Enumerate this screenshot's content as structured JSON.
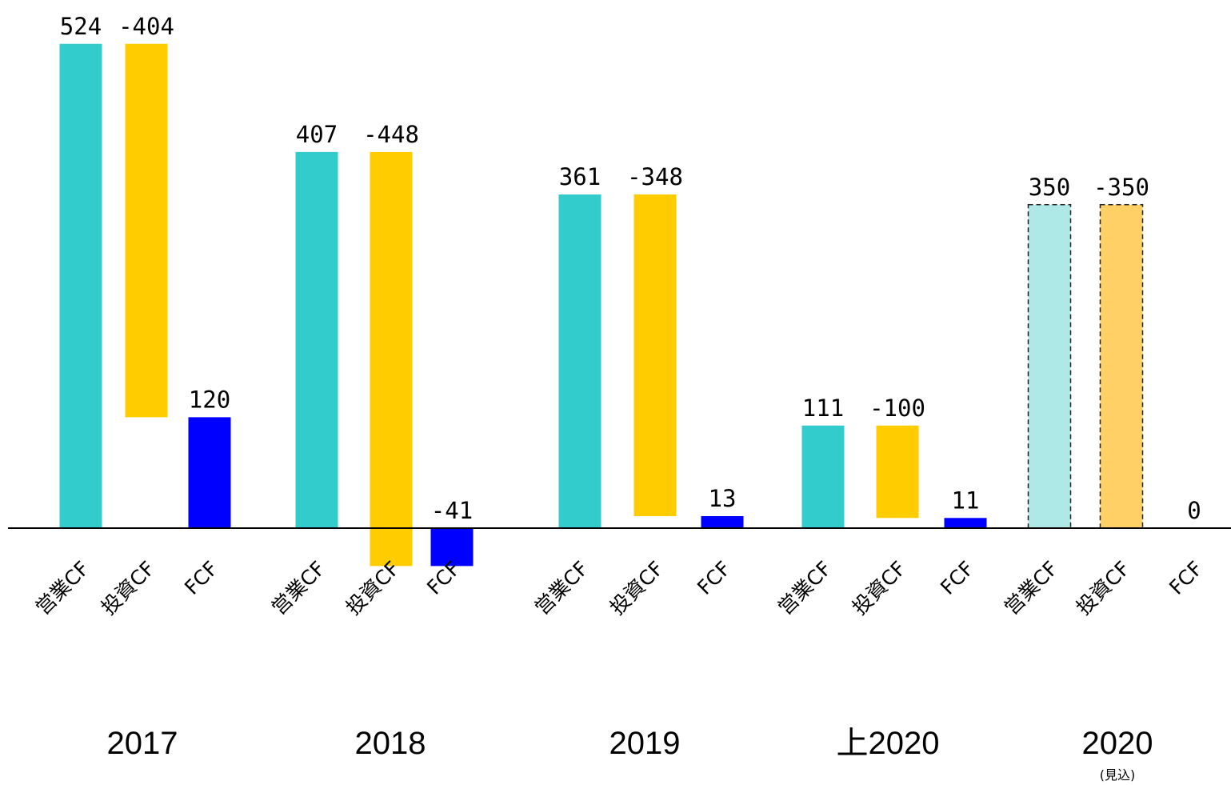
{
  "chart_data": {
    "type": "waterfall",
    "categories": [
      "2017",
      "2018",
      "2019",
      "上2020",
      "2020"
    ],
    "forecast": [
      false,
      false,
      false,
      false,
      true
    ],
    "forecast_note": "(見込)",
    "series": [
      {
        "name": "営業CF",
        "color": "#33cccc",
        "forecast_color": "#aee9e7",
        "values": [
          524,
          407,
          361,
          111,
          350
        ]
      },
      {
        "name": "投資CF",
        "color": "#ffcc00",
        "forecast_color": "#ffd066",
        "values": [
          -404,
          -448,
          -348,
          -100,
          -350
        ]
      },
      {
        "name": "FCF",
        "color": "#0000ff",
        "forecast_color": "#0000ff",
        "values": [
          120,
          -41,
          13,
          11,
          0
        ]
      }
    ]
  }
}
